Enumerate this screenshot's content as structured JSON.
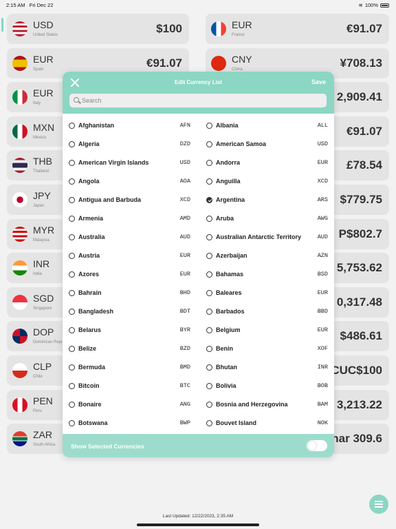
{
  "status": {
    "time": "2:15 AM",
    "date": "Fri Dec 22",
    "battery": "100%"
  },
  "modal": {
    "title": "Edit Currency List",
    "close_icon": "close-icon",
    "save_label": "Save",
    "search_placeholder": "Search",
    "footer_label": "Show Selected Currencies",
    "toggle_on": false
  },
  "background_cards": [
    {
      "code": "USD",
      "country": "United States",
      "amount": "$100"
    },
    {
      "code": "EUR",
      "country": "France",
      "amount": "€91.07"
    },
    {
      "code": "EUR",
      "country": "Spain",
      "amount": "€91.07"
    },
    {
      "code": "CNY",
      "country": "China",
      "amount": "¥708.13"
    },
    {
      "code": "EUR",
      "country": "Italy",
      "amount": ""
    },
    {
      "code": "",
      "country": "",
      "amount": "2,909.41"
    },
    {
      "code": "MXN",
      "country": "Mexico",
      "amount": ""
    },
    {
      "code": "",
      "country": "",
      "amount": "€91.07"
    },
    {
      "code": "THB",
      "country": "Thailand",
      "amount": ""
    },
    {
      "code": "",
      "country": "",
      "amount": "£78.54"
    },
    {
      "code": "JPY",
      "country": "Japan",
      "amount": ""
    },
    {
      "code": "",
      "country": "",
      "amount": "$779.75"
    },
    {
      "code": "MYR",
      "country": "Malaysia",
      "amount": ""
    },
    {
      "code": "",
      "country": "",
      "amount": "P$802.7"
    },
    {
      "code": "INR",
      "country": "India",
      "amount": ""
    },
    {
      "code": "",
      "country": "",
      "amount": "5,753.62"
    },
    {
      "code": "SGD",
      "country": "Singapore",
      "amount": ""
    },
    {
      "code": "",
      "country": "",
      "amount": "0,317.48"
    },
    {
      "code": "DOP",
      "country": "Dominican Republic",
      "amount": ""
    },
    {
      "code": "",
      "country": "",
      "amount": "$486.61"
    },
    {
      "code": "CLP",
      "country": "Chile",
      "amount": ""
    },
    {
      "code": "",
      "country": "",
      "amount": "CUC$100"
    },
    {
      "code": "PEN",
      "country": "Peru",
      "amount": ""
    },
    {
      "code": "",
      "country": "",
      "amount": "3,213.22"
    },
    {
      "code": "ZAR",
      "country": "South Africa",
      "amount": ""
    },
    {
      "code": "",
      "country": "",
      "amount": "har 309.6"
    }
  ],
  "currencies_left": [
    {
      "name": "Afghanistan",
      "code": "AFN",
      "checked": false
    },
    {
      "name": "Algeria",
      "code": "DZD",
      "checked": false
    },
    {
      "name": "American Virgin Islands",
      "code": "USD",
      "checked": false
    },
    {
      "name": "Angola",
      "code": "AOA",
      "checked": false
    },
    {
      "name": "Antigua and Barbuda",
      "code": "XCD",
      "checked": false
    },
    {
      "name": "Armenia",
      "code": "AMD",
      "checked": false
    },
    {
      "name": "Australia",
      "code": "AUD",
      "checked": false
    },
    {
      "name": "Austria",
      "code": "EUR",
      "checked": false
    },
    {
      "name": "Azores",
      "code": "EUR",
      "checked": false
    },
    {
      "name": "Bahrain",
      "code": "BHD",
      "checked": false
    },
    {
      "name": "Bangladesh",
      "code": "BDT",
      "checked": false
    },
    {
      "name": "Belarus",
      "code": "BYR",
      "checked": false
    },
    {
      "name": "Belize",
      "code": "BZD",
      "checked": false
    },
    {
      "name": "Bermuda",
      "code": "BMD",
      "checked": false
    },
    {
      "name": "Bitcoin",
      "code": "BTC",
      "checked": false
    },
    {
      "name": "Bonaire",
      "code": "ANG",
      "checked": false
    },
    {
      "name": "Botswana",
      "code": "BWP",
      "checked": false
    }
  ],
  "currencies_right": [
    {
      "name": "Albania",
      "code": "ALL",
      "checked": false
    },
    {
      "name": "American Samoa",
      "code": "USD",
      "checked": false
    },
    {
      "name": "Andorra",
      "code": "EUR",
      "checked": false
    },
    {
      "name": "Anguilla",
      "code": "XCD",
      "checked": false
    },
    {
      "name": "Argentina",
      "code": "ARS",
      "checked": true
    },
    {
      "name": "Aruba",
      "code": "AWG",
      "checked": false
    },
    {
      "name": "Australian Antarctic Territory",
      "code": "AUD",
      "checked": false
    },
    {
      "name": "Azerbaijan",
      "code": "AZN",
      "checked": false
    },
    {
      "name": "Bahamas",
      "code": "BSD",
      "checked": false
    },
    {
      "name": "Baleares",
      "code": "EUR",
      "checked": false
    },
    {
      "name": "Barbados",
      "code": "BBD",
      "checked": false
    },
    {
      "name": "Belgium",
      "code": "EUR",
      "checked": false
    },
    {
      "name": "Benin",
      "code": "XOF",
      "checked": false
    },
    {
      "name": "Bhutan",
      "code": "INR",
      "checked": false
    },
    {
      "name": "Bolivia",
      "code": "BOB",
      "checked": false
    },
    {
      "name": "Bosnia and Herzegovina",
      "code": "BAM",
      "checked": false
    },
    {
      "name": "Bouvet Island",
      "code": "NOK",
      "checked": false
    }
  ],
  "last_updated": "Last Updated: 12/22/2023, 2:35 AM",
  "fab_icon": "list-icon",
  "accent_color": "#8cd6c4"
}
